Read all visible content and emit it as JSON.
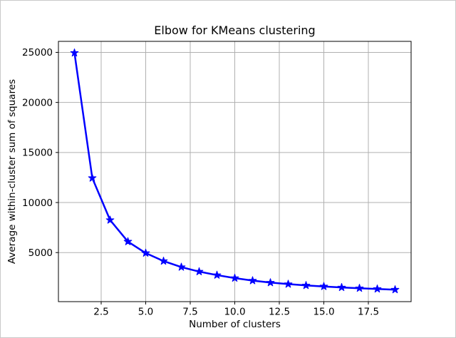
{
  "figure": {
    "background": "#ffffff",
    "frame_border_color": "#c9c9c9"
  },
  "chart_data": {
    "type": "line",
    "title": "Elbow for KMeans clustering",
    "xlabel": "Number of clusters",
    "ylabel": "Average within-cluster sum of squares",
    "x": [
      1,
      2,
      3,
      4,
      5,
      6,
      7,
      8,
      9,
      10,
      11,
      12,
      13,
      14,
      15,
      16,
      17,
      18,
      19
    ],
    "y": [
      24950,
      12450,
      8250,
      6100,
      4950,
      4150,
      3550,
      3100,
      2750,
      2450,
      2200,
      2000,
      1850,
      1720,
      1620,
      1520,
      1440,
      1370,
      1300
    ],
    "xlim": [
      0.1,
      19.9
    ],
    "ylim": [
      100,
      26100
    ],
    "xticks": {
      "values": [
        2.5,
        5.0,
        7.5,
        10.0,
        12.5,
        15.0,
        17.5
      ],
      "labels": [
        "2.5",
        "5.0",
        "7.5",
        "10.0",
        "12.5",
        "15.0",
        "17.5"
      ]
    },
    "yticks": {
      "values": [
        5000,
        10000,
        15000,
        20000,
        25000
      ],
      "labels": [
        "5000",
        "10000",
        "15000",
        "20000",
        "25000"
      ]
    },
    "grid": true,
    "legend_position": "none",
    "marker": "star",
    "line_color": "#0000ff",
    "marker_color": "#0000ff",
    "grid_color": "#b0b0b0",
    "axis_color": "#000000",
    "text_color": "#000000"
  }
}
